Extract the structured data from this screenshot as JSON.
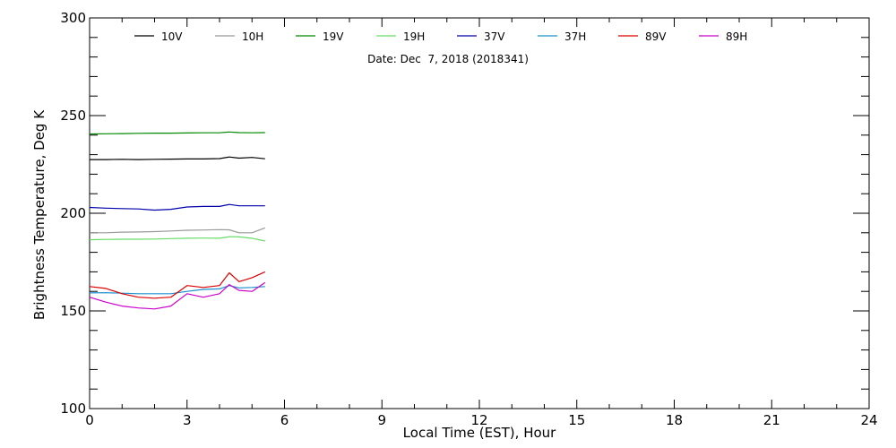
{
  "chart_data": {
    "type": "line",
    "title": "",
    "subtitle": "Date: Dec  7, 2018 (2018341)",
    "xlabel": "Local Time (EST), Hour",
    "ylabel": "Brightness Temperature, Deg K",
    "xlim": [
      0,
      24
    ],
    "ylim": [
      100,
      300
    ],
    "xticks": [
      0,
      3,
      6,
      9,
      12,
      15,
      18,
      21,
      24
    ],
    "yticks": [
      100,
      150,
      200,
      250,
      300
    ],
    "grid": false,
    "legend_position": "top",
    "x": [
      0,
      0.5,
      1.0,
      1.5,
      2.0,
      2.5,
      3.0,
      3.5,
      4.0,
      4.3,
      4.6,
      5.0,
      5.4
    ],
    "series": [
      {
        "name": "10V",
        "color": "#000000",
        "values": [
          227.5,
          227.5,
          227.6,
          227.5,
          227.6,
          227.7,
          227.8,
          227.8,
          228.0,
          228.8,
          228.2,
          228.6,
          227.9
        ]
      },
      {
        "name": "10H",
        "color": "#999999",
        "values": [
          190.0,
          190.0,
          190.3,
          190.4,
          190.6,
          190.9,
          191.3,
          191.4,
          191.6,
          191.5,
          190.0,
          190.0,
          192.5
        ]
      },
      {
        "name": "19V",
        "color": "#008800",
        "values": [
          240.6,
          240.7,
          240.8,
          240.9,
          241.0,
          241.0,
          241.1,
          241.2,
          241.2,
          241.6,
          241.3,
          241.2,
          241.3
        ]
      },
      {
        "name": "19H",
        "color": "#66dd66",
        "values": [
          186.4,
          186.6,
          186.7,
          186.7,
          186.8,
          187.0,
          187.2,
          187.3,
          187.2,
          188.0,
          187.9,
          187.2,
          185.8
        ]
      },
      {
        "name": "37V",
        "color": "#0000aa",
        "values": [
          203.0,
          202.6,
          202.4,
          202.2,
          201.6,
          202.0,
          203.2,
          203.5,
          203.5,
          204.5,
          203.8,
          203.8,
          203.8
        ]
      },
      {
        "name": "37H",
        "color": "#1a8fcc",
        "values": [
          159.2,
          159.3,
          159.1,
          158.8,
          158.8,
          158.8,
          160.0,
          161.0,
          161.3,
          163.0,
          161.8,
          162.0,
          162.5
        ]
      },
      {
        "name": "89V",
        "color": "#dd0000",
        "values": [
          162.5,
          161.5,
          158.8,
          157.0,
          156.5,
          157.0,
          163.0,
          162.0,
          163.0,
          169.5,
          165.0,
          167.0,
          170.0
        ]
      },
      {
        "name": "89H",
        "color": "#cc00cc",
        "values": [
          157.0,
          154.5,
          152.5,
          151.5,
          151.0,
          152.5,
          158.8,
          157.0,
          158.8,
          163.5,
          160.5,
          160.0,
          164.5
        ]
      }
    ]
  }
}
